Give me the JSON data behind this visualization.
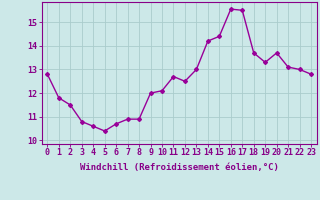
{
  "x": [
    0,
    1,
    2,
    3,
    4,
    5,
    6,
    7,
    8,
    9,
    10,
    11,
    12,
    13,
    14,
    15,
    16,
    17,
    18,
    19,
    20,
    21,
    22,
    23
  ],
  "y": [
    12.8,
    11.8,
    11.5,
    10.8,
    10.6,
    10.4,
    10.7,
    10.9,
    10.9,
    12.0,
    12.1,
    12.7,
    12.5,
    13.0,
    14.2,
    14.4,
    15.55,
    15.5,
    13.7,
    13.3,
    13.7,
    13.1,
    13.0,
    12.8
  ],
  "line_color": "#990099",
  "marker": "D",
  "marker_size": 2.0,
  "bg_color": "#cce8e8",
  "grid_color": "#aacccc",
  "ylabel": "",
  "ylim": [
    9.85,
    15.85
  ],
  "yticks": [
    10,
    11,
    12,
    13,
    14,
    15
  ],
  "xlim": [
    -0.5,
    23.5
  ],
  "xticks": [
    0,
    1,
    2,
    3,
    4,
    5,
    6,
    7,
    8,
    9,
    10,
    11,
    12,
    13,
    14,
    15,
    16,
    17,
    18,
    19,
    20,
    21,
    22,
    23
  ],
  "tick_label_color": "#880088",
  "axis_color": "#880088",
  "xlabel": "Windchill (Refroidissement éolien,°C)",
  "xlabel_fontsize": 6.5,
  "tick_fontsize": 6.0,
  "linewidth": 1.0
}
